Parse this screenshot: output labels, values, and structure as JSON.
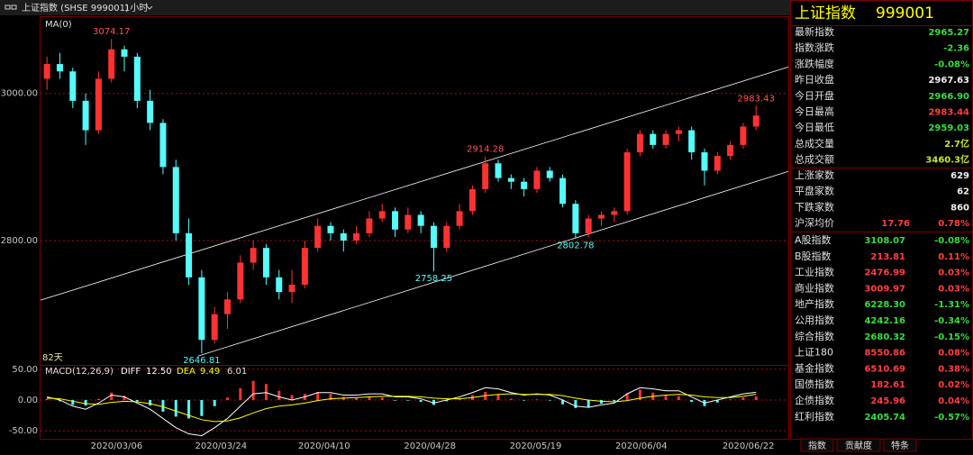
{
  "header": {
    "title": "上证指数 (SHSE 999001)",
    "period": "1小时"
  },
  "chart_data": [
    {
      "type": "candlestick",
      "indicator_label": "MA(0)",
      "period_label": "82天",
      "up_color": "#ff3232",
      "down_color": "#54fcfc",
      "ohlc": [
        [
          3020,
          3050,
          3005,
          3040
        ],
        [
          3040,
          3055,
          3020,
          3030
        ],
        [
          3030,
          3035,
          2980,
          2990
        ],
        [
          2990,
          3000,
          2930,
          2950
        ],
        [
          2950,
          3030,
          2945,
          3020
        ],
        [
          3020,
          3074.17,
          3015,
          3060
        ],
        [
          3060,
          3065,
          3030,
          3050
        ],
        [
          3050,
          3055,
          2980,
          2990
        ],
        [
          2990,
          3005,
          2950,
          2960
        ],
        [
          2960,
          2965,
          2890,
          2900
        ],
        [
          2900,
          2910,
          2800,
          2810
        ],
        [
          2810,
          2830,
          2740,
          2750
        ],
        [
          2750,
          2760,
          2646.81,
          2665
        ],
        [
          2665,
          2710,
          2660,
          2700
        ],
        [
          2700,
          2730,
          2680,
          2720
        ],
        [
          2720,
          2780,
          2715,
          2770
        ],
        [
          2770,
          2800,
          2760,
          2790
        ],
        [
          2790,
          2795,
          2740,
          2750
        ],
        [
          2750,
          2760,
          2720,
          2730
        ],
        [
          2730,
          2760,
          2715,
          2740
        ],
        [
          2740,
          2800,
          2735,
          2790
        ],
        [
          2790,
          2830,
          2785,
          2820
        ],
        [
          2820,
          2825,
          2800,
          2810
        ],
        [
          2810,
          2815,
          2785,
          2800
        ],
        [
          2800,
          2820,
          2795,
          2810
        ],
        [
          2810,
          2840,
          2805,
          2830
        ],
        [
          2830,
          2850,
          2825,
          2840
        ],
        [
          2840,
          2845,
          2805,
          2815
        ],
        [
          2815,
          2845,
          2810,
          2835
        ],
        [
          2835,
          2840,
          2810,
          2820
        ],
        [
          2820,
          2825,
          2758.25,
          2790
        ],
        [
          2790,
          2825,
          2785,
          2820
        ],
        [
          2820,
          2850,
          2815,
          2840
        ],
        [
          2840,
          2875,
          2835,
          2870
        ],
        [
          2870,
          2914.28,
          2865,
          2905
        ],
        [
          2905,
          2910,
          2880,
          2885
        ],
        [
          2885,
          2890,
          2870,
          2880
        ],
        [
          2880,
          2885,
          2860,
          2870
        ],
        [
          2870,
          2900,
          2865,
          2895
        ],
        [
          2895,
          2900,
          2880,
          2885
        ],
        [
          2885,
          2890,
          2845,
          2850
        ],
        [
          2850,
          2855,
          2802.78,
          2810
        ],
        [
          2810,
          2835,
          2805,
          2830
        ],
        [
          2830,
          2840,
          2820,
          2835
        ],
        [
          2835,
          2845,
          2825,
          2840
        ],
        [
          2840,
          2925,
          2835,
          2920
        ],
        [
          2920,
          2950,
          2915,
          2945
        ],
        [
          2945,
          2950,
          2925,
          2930
        ],
        [
          2930,
          2950,
          2925,
          2945
        ],
        [
          2945,
          2955,
          2935,
          2950
        ],
        [
          2950,
          2955,
          2910,
          2920
        ],
        [
          2920,
          2925,
          2875,
          2895
        ],
        [
          2895,
          2920,
          2890,
          2915
        ],
        [
          2915,
          2935,
          2910,
          2930
        ],
        [
          2930,
          2960,
          2925,
          2955
        ],
        [
          2955,
          2983.43,
          2950,
          2970
        ]
      ],
      "xlim": [
        -0.5,
        57.5
      ],
      "ylim": [
        2631,
        3105
      ],
      "yticks": [
        {
          "value": 3000,
          "label": "3000.00"
        },
        {
          "value": 2800,
          "label": "2800.00"
        }
      ],
      "grid": true,
      "grid_color": "#a01010",
      "annotations": [
        {
          "x": 5,
          "value": 3074.17,
          "color": "#ff5555"
        },
        {
          "x": 12,
          "value": 2646.81,
          "color": "#54fcfc"
        },
        {
          "x": 30,
          "value": 2758.25,
          "color": "#54fcfc"
        },
        {
          "x": 34,
          "value": 2914.28,
          "color": "#ff5555"
        },
        {
          "x": 41,
          "value": 2802.78,
          "color": "#54fcfc"
        },
        {
          "x": 55,
          "value": 2983.43,
          "color": "#ff5555"
        }
      ],
      "trendlines": [
        {
          "x": [
            -0.5,
            57.5
          ],
          "values": [
            2719,
            3036
          ],
          "color": "#ffffff"
        },
        {
          "x": [
            11.7,
            57.5
          ],
          "values": [
            2643,
            2894
          ],
          "color": "#ffffff"
        }
      ]
    },
    {
      "type": "macd",
      "title": "MACD(12,26,9)",
      "series": [
        {
          "name": "DIFF",
          "color": "#ffffff",
          "current": {
            "value": 12.5,
            "label": "12.50"
          },
          "values": [
            5,
            0,
            -10,
            -15,
            -5,
            8,
            5,
            -5,
            -15,
            -30,
            -45,
            -55,
            -58,
            -45,
            -30,
            -10,
            10,
            12,
            5,
            0,
            5,
            12,
            12,
            8,
            8,
            10,
            10,
            5,
            5,
            2,
            -5,
            0,
            5,
            12,
            20,
            18,
            12,
            8,
            10,
            8,
            0,
            -10,
            -12,
            -8,
            -5,
            10,
            20,
            18,
            15,
            15,
            5,
            -5,
            0,
            5,
            10,
            12.5
          ]
        },
        {
          "name": "DEA",
          "color": "#ffff00",
          "current": 9.49,
          "values": [
            3,
            2,
            -2,
            -6,
            -7,
            -4,
            -2,
            -3,
            -6,
            -11,
            -18,
            -25,
            -32,
            -35,
            -34,
            -29,
            -21,
            -14,
            -10,
            -8,
            -5,
            -1,
            2,
            3,
            4,
            5,
            6,
            6,
            6,
            5,
            3,
            2,
            2,
            4,
            7,
            9,
            10,
            9,
            9,
            9,
            7,
            3,
            0,
            -2,
            -3,
            -1,
            3,
            6,
            8,
            9,
            8,
            5,
            4,
            4,
            6,
            9.49
          ]
        }
      ],
      "histogram": {
        "up_color": "#ff3232",
        "down_color": "#54fcfc",
        "current": 6.01,
        "values": [
          2,
          -2,
          -8,
          -9,
          2,
          12,
          7,
          -2,
          -9,
          -19,
          -27,
          -30,
          -26,
          -10,
          4,
          19,
          31,
          26,
          15,
          8,
          10,
          13,
          10,
          5,
          4,
          5,
          4,
          -1,
          -1,
          -3,
          -8,
          -2,
          3,
          8,
          13,
          9,
          2,
          -1,
          1,
          -1,
          -7,
          -13,
          -12,
          -6,
          -2,
          11,
          17,
          12,
          7,
          6,
          -3,
          -10,
          -4,
          1,
          4,
          6.01
        ]
      },
      "xlim": [
        -0.5,
        57.5
      ],
      "ylim": [
        -63,
        57
      ],
      "yticks": [
        {
          "value": 50,
          "label": "50.00"
        },
        {
          "value": 0,
          "label": "0.00"
        },
        {
          "value": -50,
          "label": "-50.00"
        }
      ],
      "grid": true,
      "grid_color": "#a01010",
      "xticks": [
        {
          "value": 5.4,
          "label": "2020/03/06"
        },
        {
          "value": 13.5,
          "label": "2020/03/24"
        },
        {
          "value": 21.5,
          "label": "2020/04/10"
        },
        {
          "value": 29.7,
          "label": "2020/04/28"
        },
        {
          "value": 37.9,
          "label": "2020/05/19"
        },
        {
          "value": 46.1,
          "label": "2020/06/04"
        },
        {
          "value": 54.4,
          "label": "2020/06/22"
        }
      ]
    }
  ],
  "sidebar": {
    "title": "上证指数",
    "code": "999001",
    "quote": [
      {
        "label": "最新指数",
        "value": "2965.27",
        "color": "#3cdc3c"
      },
      {
        "label": "指数涨跌",
        "value": "-2.36",
        "color": "#3cdc3c"
      },
      {
        "label": "涨跌幅度",
        "value": "-0.08%",
        "color": "#3cdc3c"
      },
      {
        "label": "昨日收盘",
        "value": "2967.63",
        "color": "#f0f0f0"
      },
      {
        "label": "今日开盘",
        "value": "2966.90",
        "color": "#3cdc3c"
      },
      {
        "label": "今日最高",
        "value": "2983.44",
        "color": "#ff4040"
      },
      {
        "label": "今日最低",
        "value": "2959.03",
        "color": "#3cdc3c"
      },
      {
        "label": "总成交量",
        "value": "2.7亿",
        "color": "#c8e632"
      },
      {
        "label": "总成交额",
        "value": "3460.3亿",
        "color": "#c8e632"
      }
    ],
    "breadth": [
      {
        "label": "上涨家数",
        "value": "629",
        "color": "#f0f0f0"
      },
      {
        "label": "平盘家数",
        "value": "62",
        "color": "#f0f0f0"
      },
      {
        "label": "下跌家数",
        "value": "860",
        "color": "#f0f0f0"
      }
    ],
    "average": {
      "label": "沪深均价",
      "value": "17.76",
      "change": "0.78%",
      "color": "#ff4040"
    },
    "indices": [
      {
        "name": "A股指数",
        "value": "3108.07",
        "change": "-0.08%",
        "color": "#3cdc3c"
      },
      {
        "name": "B股指数",
        "value": "213.81",
        "change": "0.11%",
        "color": "#ff4040"
      },
      {
        "name": "工业指数",
        "value": "2476.99",
        "change": "0.03%",
        "color": "#ff4040"
      },
      {
        "name": "商业指数",
        "value": "3009.97",
        "change": "0.03%",
        "color": "#ff4040"
      },
      {
        "name": "地产指数",
        "value": "6228.30",
        "change": "-1.31%",
        "color": "#3cdc3c"
      },
      {
        "name": "公用指数",
        "value": "4242.16",
        "change": "-0.34%",
        "color": "#3cdc3c"
      },
      {
        "name": "综合指数",
        "value": "2680.32",
        "change": "-0.15%",
        "color": "#3cdc3c"
      },
      {
        "name": "上证180",
        "value": "8550.86",
        "change": "0.08%",
        "color": "#ff4040"
      },
      {
        "name": "基金指数",
        "value": "6510.69",
        "change": "0.38%",
        "color": "#ff4040"
      },
      {
        "name": "国债指数",
        "value": "182.61",
        "change": "0.02%",
        "color": "#ff4040"
      },
      {
        "name": "企债指数",
        "value": "245.96",
        "change": "0.04%",
        "color": "#ff4040"
      },
      {
        "name": "红利指数",
        "value": "2405.74",
        "change": "-0.57%",
        "color": "#3cdc3c"
      }
    ],
    "tabs": [
      "指数",
      "贡献度",
      "特条"
    ]
  }
}
